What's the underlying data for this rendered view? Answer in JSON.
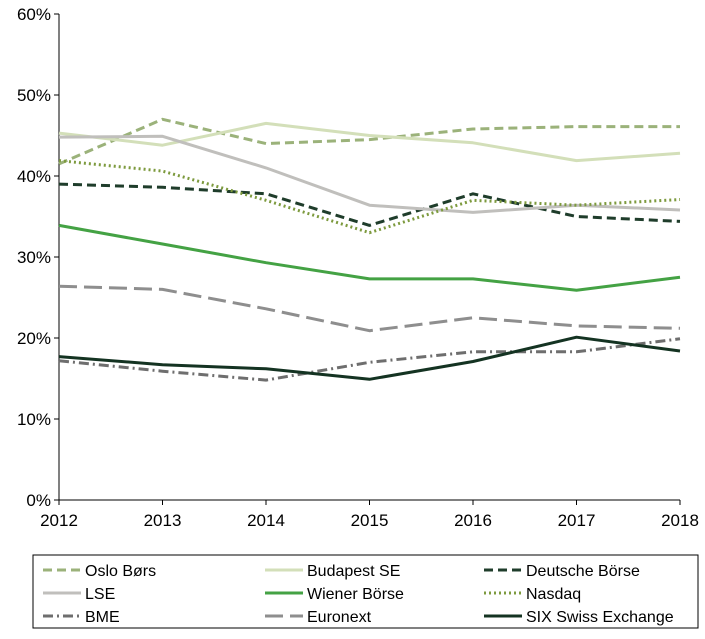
{
  "chart_data": {
    "type": "line",
    "title": "",
    "xlabel": "",
    "ylabel": "",
    "x": [
      "2012",
      "2013",
      "2014",
      "2015",
      "2016",
      "2017",
      "2018"
    ],
    "y_ticks": [
      "0%",
      "10%",
      "20%",
      "30%",
      "40%",
      "50%",
      "60%"
    ],
    "ylim": [
      0,
      60
    ],
    "grid": false,
    "legend_position": "bottom",
    "series": [
      {
        "name": "Oslo Børs",
        "color": "#9bb27a",
        "dash": "dashed",
        "values": [
          41.5,
          47.0,
          44.0,
          44.5,
          45.8,
          46.1,
          46.1
        ]
      },
      {
        "name": "Budapest SE",
        "color": "#d3dfb9",
        "dash": "solid",
        "values": [
          45.3,
          43.8,
          46.5,
          45.0,
          44.1,
          41.9,
          42.8
        ]
      },
      {
        "name": "Deutsche Börse",
        "color": "#1f3d2b",
        "dash": "dashed",
        "values": [
          39.0,
          38.6,
          37.8,
          33.9,
          37.8,
          35.0,
          34.4
        ]
      },
      {
        "name": "LSE",
        "color": "#c0bfbc",
        "dash": "solid",
        "values": [
          44.8,
          44.9,
          41.0,
          36.4,
          35.5,
          36.4,
          35.8
        ]
      },
      {
        "name": "Wiener Börse",
        "color": "#44a244",
        "dash": "solid",
        "values": [
          33.9,
          31.6,
          29.3,
          27.3,
          27.3,
          25.9,
          27.5
        ]
      },
      {
        "name": "Nasdaq",
        "color": "#7d9a3e",
        "dash": "dotted",
        "values": [
          41.9,
          40.6,
          37.0,
          33.0,
          37.0,
          36.4,
          37.1
        ]
      },
      {
        "name": "BME",
        "color": "#6e6e6e",
        "dash": "dashdot",
        "values": [
          17.2,
          15.9,
          14.8,
          17.0,
          18.3,
          18.3,
          19.9
        ]
      },
      {
        "name": "Euronext",
        "color": "#8e8e8e",
        "dash": "longdash",
        "values": [
          26.4,
          26.0,
          23.6,
          20.9,
          22.5,
          21.5,
          21.2
        ]
      },
      {
        "name": "SIX Swiss Exchange",
        "color": "#143322",
        "dash": "solid",
        "values": [
          17.7,
          16.7,
          16.2,
          14.9,
          17.1,
          20.1,
          18.4
        ]
      }
    ]
  }
}
